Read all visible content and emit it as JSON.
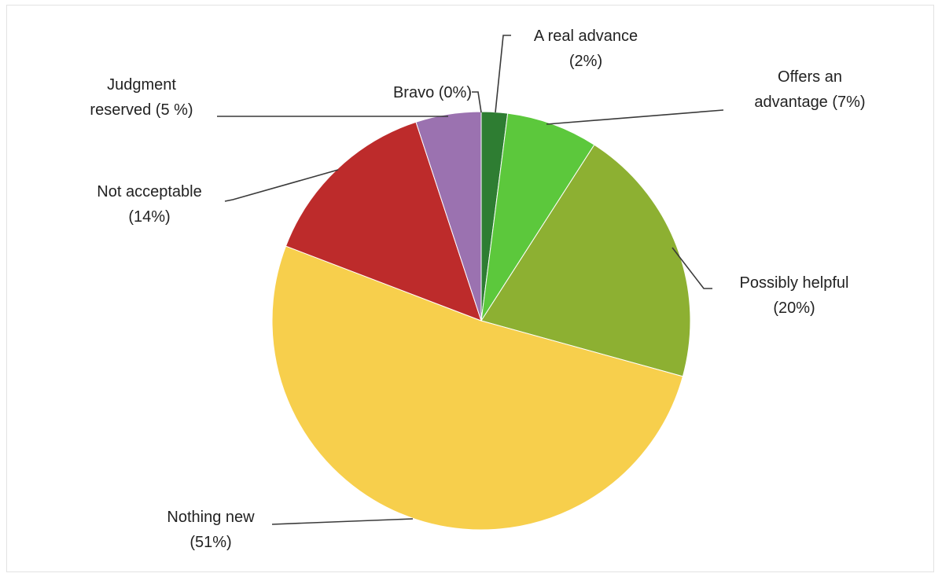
{
  "chart_data": {
    "type": "pie",
    "start_angle_deg": 0,
    "direction": "clockwise",
    "slices": [
      {
        "name": "Bravo",
        "value": 0,
        "color": "#4a2d6e",
        "label_lines": [
          "Bravo (0%)"
        ]
      },
      {
        "name": "A real advance",
        "value": 2,
        "color": "#2e7d32",
        "label_lines": [
          "A real advance",
          "(2%)"
        ]
      },
      {
        "name": "Offers an advantage",
        "value": 7,
        "color": "#5cc83c",
        "label_lines": [
          "Offers an",
          "advantage (7%)"
        ]
      },
      {
        "name": "Possibly helpful",
        "value": 20,
        "color": "#8db032",
        "label_lines": [
          "Possibly helpful",
          "(20%)"
        ]
      },
      {
        "name": "Nothing new",
        "value": 51,
        "color": "#f7cf4c",
        "label_lines": [
          "Nothing new",
          "(51%)"
        ]
      },
      {
        "name": "Not acceptable",
        "value": 14,
        "color": "#bd2b2b",
        "label_lines": [
          "Not acceptable",
          "(14%)"
        ]
      },
      {
        "name": "Judgment reserved",
        "value": 5,
        "color": "#9b72b0",
        "label_lines": [
          "Judgment",
          "reserved (5 %)"
        ]
      }
    ]
  }
}
